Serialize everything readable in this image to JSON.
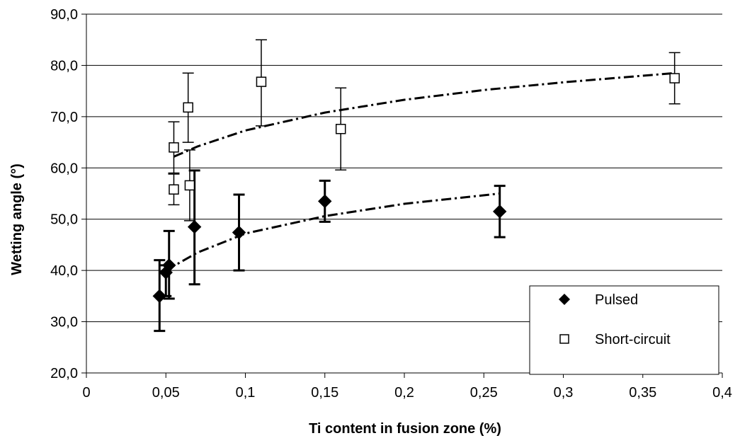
{
  "chart_data": {
    "type": "scatter",
    "title": "",
    "xlabel": "Ti content in fusion zone (%)",
    "ylabel": "Wetting angle (°)",
    "xlim": [
      0,
      0.4
    ],
    "ylim": [
      20,
      90
    ],
    "x_ticks": [
      "0",
      "0,05",
      "0,1",
      "0,15",
      "0,2",
      "0,25",
      "0,3",
      "0,35",
      "0,4"
    ],
    "y_ticks": [
      "20,0",
      "30,0",
      "40,0",
      "50,0",
      "60,0",
      "70,0",
      "80,0",
      "90,0"
    ],
    "x_tick_values": [
      0,
      0.05,
      0.1,
      0.15,
      0.2,
      0.25,
      0.3,
      0.35,
      0.4
    ],
    "y_tick_values": [
      20,
      30,
      40,
      50,
      60,
      70,
      80,
      90
    ],
    "grid": "horizontal",
    "legend_position": "bottom-right",
    "series": [
      {
        "name": "Pulsed",
        "marker": "filled-diamond",
        "color": "#000000",
        "points": [
          {
            "x": 0.046,
            "y": 35.0,
            "err_low": 28.2,
            "err_high": 42.0
          },
          {
            "x": 0.05,
            "y": 39.6,
            "err_low": 35.0,
            "err_high": 41.0
          },
          {
            "x": 0.052,
            "y": 41.0,
            "err_low": 34.5,
            "err_high": 47.7
          },
          {
            "x": 0.068,
            "y": 48.5,
            "err_low": 37.3,
            "err_high": 59.5
          },
          {
            "x": 0.096,
            "y": 47.4,
            "err_low": 40.0,
            "err_high": 54.8
          },
          {
            "x": 0.15,
            "y": 53.5,
            "err_low": 49.5,
            "err_high": 57.5
          },
          {
            "x": 0.26,
            "y": 51.5,
            "err_low": 46.5,
            "err_high": 56.5
          }
        ],
        "trendline": [
          {
            "x": 0.05,
            "y": 40.0
          },
          {
            "x": 0.07,
            "y": 43.5
          },
          {
            "x": 0.1,
            "y": 47.2
          },
          {
            "x": 0.15,
            "y": 50.6
          },
          {
            "x": 0.2,
            "y": 53.0
          },
          {
            "x": 0.26,
            "y": 55.0
          }
        ]
      },
      {
        "name": "Short-circuit",
        "marker": "open-square",
        "color": "#000000",
        "points": [
          {
            "x": 0.055,
            "y": 64.0,
            "err_low": 59.0,
            "err_high": 69.0
          },
          {
            "x": 0.055,
            "y": 55.8,
            "err_low": 52.8,
            "err_high": 58.8
          },
          {
            "x": 0.064,
            "y": 71.8,
            "err_low": 65.0,
            "err_high": 78.5
          },
          {
            "x": 0.065,
            "y": 56.6,
            "err_low": 49.7,
            "err_high": 63.5
          },
          {
            "x": 0.11,
            "y": 76.8,
            "err_low": 68.2,
            "err_high": 85.0
          },
          {
            "x": 0.16,
            "y": 67.6,
            "err_low": 59.6,
            "err_high": 75.6
          },
          {
            "x": 0.37,
            "y": 77.5,
            "err_low": 72.5,
            "err_high": 82.5
          }
        ],
        "trendline": [
          {
            "x": 0.055,
            "y": 62.2
          },
          {
            "x": 0.07,
            "y": 64.2
          },
          {
            "x": 0.1,
            "y": 67.3
          },
          {
            "x": 0.15,
            "y": 70.8
          },
          {
            "x": 0.2,
            "y": 73.3
          },
          {
            "x": 0.25,
            "y": 75.2
          },
          {
            "x": 0.3,
            "y": 76.7
          },
          {
            "x": 0.37,
            "y": 78.5
          }
        ]
      }
    ]
  }
}
